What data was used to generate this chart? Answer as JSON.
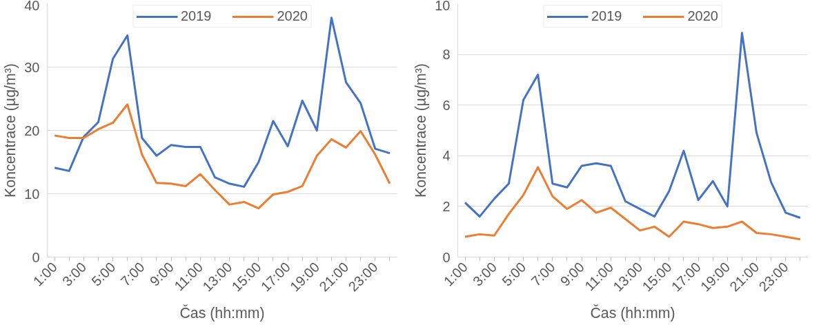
{
  "chart_data": [
    {
      "type": "line",
      "categories": [
        "1:00",
        null,
        "3:00",
        null,
        "5:00",
        null,
        "7:00",
        null,
        "9:00",
        null,
        "11:00",
        null,
        "13:00",
        null,
        "15:00",
        null,
        "17:00",
        null,
        "19:00",
        null,
        "21:00",
        null,
        "23:00",
        null
      ],
      "xlabel": "Čas (hh:mm)",
      "ylabel": "Koncentrace (µg/m³)",
      "ylim": [
        0,
        40
      ],
      "yticks": [
        0,
        10,
        20,
        30,
        40
      ],
      "grid": "y",
      "legend": "top",
      "marker": "none",
      "line_style": "solid",
      "series": [
        {
          "name": "2019",
          "color": "#4472c4",
          "values": [
            14.1,
            13.6,
            19,
            21.3,
            31.3,
            35,
            18.8,
            16,
            17.7,
            17.4,
            17.4,
            12.6,
            11.6,
            11.1,
            15,
            21.5,
            17.5,
            24.7,
            20,
            37.8,
            27.6,
            24.3,
            17.1,
            16.4
          ]
        },
        {
          "name": "2020",
          "color": "#ed7d31",
          "values": [
            19.2,
            18.8,
            18.8,
            20.2,
            21.2,
            24.1,
            16.2,
            11.7,
            11.6,
            11.2,
            13.1,
            10.6,
            8.3,
            8.7,
            7.7,
            9.9,
            10.3,
            11.2,
            16,
            18.6,
            17.3,
            19.9,
            16.2,
            11.6
          ]
        }
      ]
    },
    {
      "type": "line",
      "categories": [
        "1:00",
        null,
        "3:00",
        null,
        "5:00",
        null,
        "7:00",
        null,
        "9:00",
        null,
        "11:00",
        null,
        "13:00",
        null,
        "15:00",
        null,
        "17:00",
        null,
        "19:00",
        null,
        "21:00",
        null,
        "23:00",
        null
      ],
      "xlabel": "Čas (hh:mm)",
      "ylabel": "Koncentrace (µg/m³)",
      "ylim": [
        0,
        10
      ],
      "yticks": [
        0,
        2,
        4,
        6,
        8,
        10
      ],
      "grid": "y",
      "legend": "top",
      "marker": "none",
      "line_style": "solid",
      "series": [
        {
          "name": "2019",
          "color": "#4472c4",
          "values": [
            2.15,
            1.6,
            2.3,
            2.9,
            6.2,
            7.2,
            2.9,
            2.75,
            3.6,
            3.7,
            3.6,
            2.2,
            1.9,
            1.6,
            2.6,
            4.2,
            2.25,
            3.0,
            2.0,
            8.85,
            4.9,
            2.95,
            1.75,
            1.55
          ]
        },
        {
          "name": "2020",
          "color": "#ed7d31",
          "values": [
            0.8,
            0.9,
            0.85,
            1.7,
            2.45,
            3.55,
            2.4,
            1.9,
            2.25,
            1.75,
            1.95,
            1.5,
            1.05,
            1.2,
            0.8,
            1.4,
            1.3,
            1.15,
            1.2,
            1.4,
            0.95,
            0.9,
            0.8,
            0.7
          ]
        }
      ]
    }
  ]
}
